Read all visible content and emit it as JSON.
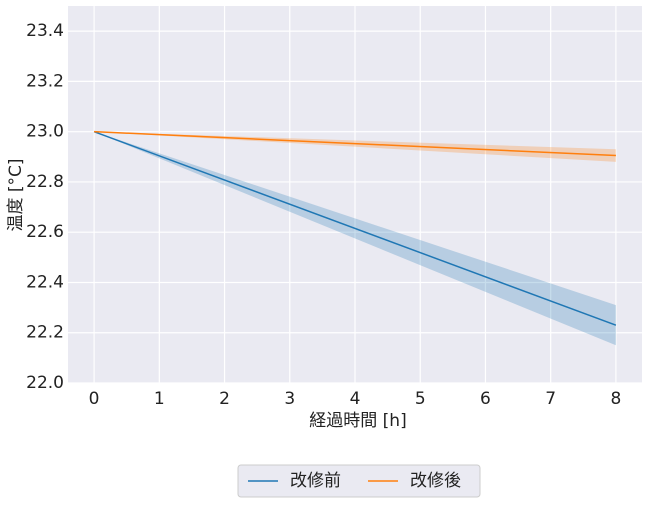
{
  "chart_data": {
    "type": "line",
    "x_label": "経過時間 [h]",
    "y_label": "温度 [°C]",
    "xlim": [
      -0.4,
      8.4
    ],
    "ylim": [
      22.0,
      23.5
    ],
    "xticks": [
      0,
      1,
      2,
      3,
      4,
      5,
      6,
      7,
      8
    ],
    "yticks": [
      {
        "value": 22.0,
        "label": "22.0"
      },
      22.2,
      22.4,
      22.6,
      22.8,
      {
        "value": 23.0,
        "label": "23.0"
      },
      23.2,
      23.4
    ],
    "grid": true,
    "legend_position": "bottom",
    "x": [
      0,
      8
    ],
    "series": [
      {
        "name": "改修前",
        "color": "#1f77b4",
        "values": [
          23.0,
          22.23
        ],
        "lower": [
          23.0,
          22.15
        ],
        "upper": [
          23.0,
          22.31
        ]
      },
      {
        "name": "改修後",
        "color": "#ff7f0e",
        "values": [
          23.0,
          22.905
        ],
        "lower": [
          23.0,
          22.88
        ],
        "upper": [
          23.0,
          22.93
        ]
      }
    ]
  }
}
